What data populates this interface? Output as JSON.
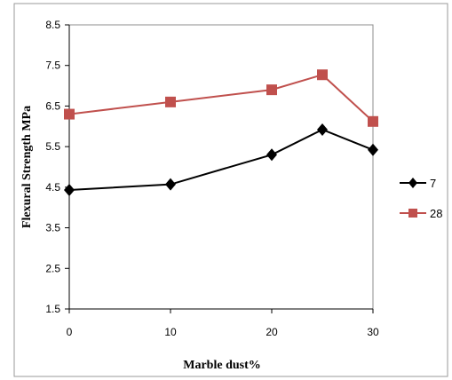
{
  "chart_data": {
    "type": "line",
    "title": "",
    "xlabel": "Marble dust%",
    "ylabel": "Flexural Strength MPa",
    "xlim": [
      0,
      30
    ],
    "ylim": [
      1.5,
      8.5
    ],
    "xticks": [
      0,
      10,
      20,
      30
    ],
    "xtick_labels": [
      "0",
      "10",
      "20",
      "30"
    ],
    "yticks": [
      1.5,
      2.5,
      3.5,
      4.5,
      5.5,
      6.5,
      7.5,
      8.5
    ],
    "ytick_labels": [
      "1.5",
      "2.5",
      "3.5",
      "4.5",
      "5.5",
      "6.5",
      "7.5",
      "8.5"
    ],
    "grid": false,
    "legend_position": "right",
    "series": [
      {
        "name": "7",
        "color": "#000000",
        "marker": "diamond",
        "points": [
          {
            "x": 0,
            "y": 4.43
          },
          {
            "x": 10,
            "y": 4.57
          },
          {
            "x": 20,
            "y": 5.3
          },
          {
            "x": 25,
            "y": 5.92
          },
          {
            "x": 30,
            "y": 5.42
          }
        ]
      },
      {
        "name": "28",
        "color": "#c0504d",
        "marker": "square",
        "points": [
          {
            "x": 0,
            "y": 6.3
          },
          {
            "x": 10,
            "y": 6.6
          },
          {
            "x": 20,
            "y": 6.9
          },
          {
            "x": 25,
            "y": 7.27
          },
          {
            "x": 30,
            "y": 6.12
          }
        ]
      }
    ]
  }
}
